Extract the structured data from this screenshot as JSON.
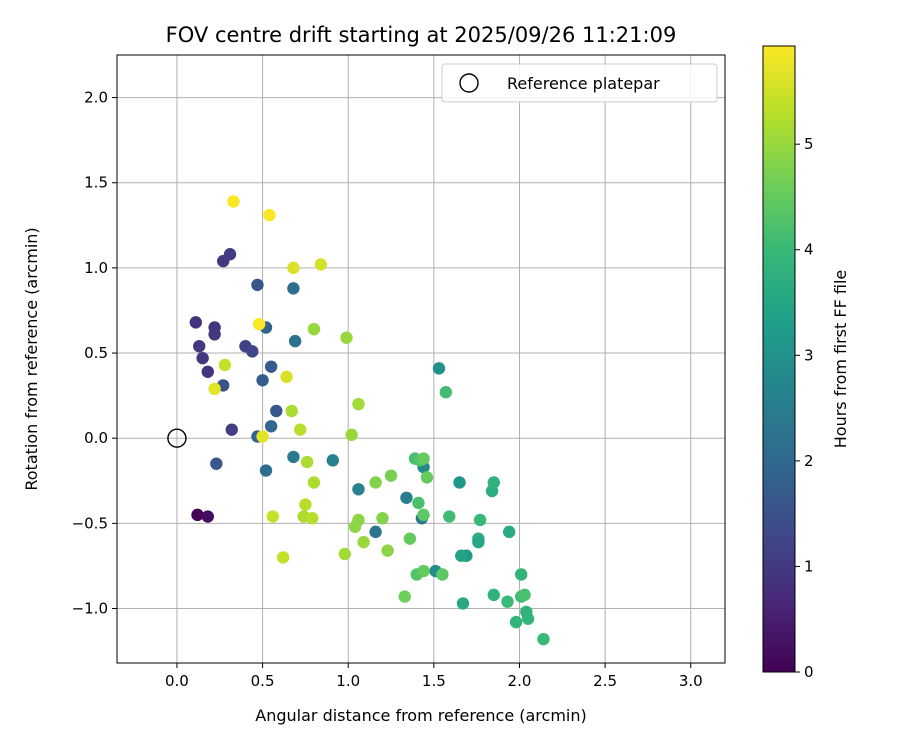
{
  "chart_data": {
    "type": "scatter",
    "title": "FOV centre drift starting at 2025/09/26 11:21:09",
    "xlabel": "Angular distance from reference (arcmin)",
    "ylabel": "Rotation from reference (arcmin)",
    "xlim": [
      -0.35,
      3.2
    ],
    "ylim": [
      -1.32,
      2.25
    ],
    "xticks": [
      0.0,
      0.5,
      1.0,
      1.5,
      2.0,
      2.5,
      3.0
    ],
    "xtick_labels": [
      "0.0",
      "0.5",
      "1.0",
      "1.5",
      "2.0",
      "2.5",
      "3.0"
    ],
    "yticks": [
      -1.0,
      -0.5,
      0.0,
      0.5,
      1.0,
      1.5,
      2.0
    ],
    "ytick_labels": [
      "−1.0",
      "−0.5",
      "0.0",
      "0.5",
      "1.0",
      "1.5",
      "2.0"
    ],
    "grid": true,
    "colormap": "viridis",
    "colorbar": {
      "label": "Hours from first FF file",
      "range": [
        0,
        5.93
      ],
      "ticks": [
        0,
        1,
        2,
        3,
        4,
        5
      ],
      "tick_labels": [
        "0",
        "1",
        "2",
        "3",
        "4",
        "5"
      ]
    },
    "legend": {
      "position": "top-right",
      "entries": [
        {
          "label": "Reference platepar",
          "marker": "open-circle",
          "x": 0.0,
          "y": 0.0
        }
      ]
    },
    "points": [
      {
        "x": 0.12,
        "y": -0.45,
        "t": 0.05
      },
      {
        "x": 0.18,
        "y": -0.46,
        "t": 0.2
      },
      {
        "x": 0.11,
        "y": 0.68,
        "t": 0.85
      },
      {
        "x": 0.13,
        "y": 0.54,
        "t": 1.0
      },
      {
        "x": 0.15,
        "y": 0.47,
        "t": 0.95
      },
      {
        "x": 0.18,
        "y": 0.39,
        "t": 0.9
      },
      {
        "x": 0.22,
        "y": 0.65,
        "t": 0.9
      },
      {
        "x": 0.22,
        "y": 0.61,
        "t": 1.0
      },
      {
        "x": 0.27,
        "y": 1.04,
        "t": 1.0
      },
      {
        "x": 0.31,
        "y": 1.08,
        "t": 1.05
      },
      {
        "x": 0.32,
        "y": 0.05,
        "t": 1.1
      },
      {
        "x": 0.4,
        "y": 0.54,
        "t": 1.15
      },
      {
        "x": 0.44,
        "y": 0.51,
        "t": 1.3
      },
      {
        "x": 0.27,
        "y": 0.31,
        "t": 1.55
      },
      {
        "x": 0.47,
        "y": 0.9,
        "t": 1.6
      },
      {
        "x": 0.23,
        "y": -0.15,
        "t": 1.6
      },
      {
        "x": 0.5,
        "y": 0.34,
        "t": 1.75
      },
      {
        "x": 0.52,
        "y": 0.65,
        "t": 1.85
      },
      {
        "x": 0.55,
        "y": 0.42,
        "t": 1.7
      },
      {
        "x": 0.58,
        "y": 0.16,
        "t": 1.6
      },
      {
        "x": 0.47,
        "y": 0.01,
        "t": 1.9
      },
      {
        "x": 0.55,
        "y": 0.07,
        "t": 1.95
      },
      {
        "x": 0.52,
        "y": -0.19,
        "t": 2.1
      },
      {
        "x": 0.68,
        "y": 0.88,
        "t": 2.15
      },
      {
        "x": 0.69,
        "y": 0.57,
        "t": 2.2
      },
      {
        "x": 0.68,
        "y": -0.11,
        "t": 2.4
      },
      {
        "x": 0.91,
        "y": -0.13,
        "t": 2.6
      },
      {
        "x": 1.06,
        "y": -0.3,
        "t": 2.6
      },
      {
        "x": 1.16,
        "y": -0.55,
        "t": 2.3
      },
      {
        "x": 1.34,
        "y": -0.35,
        "t": 2.5
      },
      {
        "x": 1.43,
        "y": -0.47,
        "t": 2.4
      },
      {
        "x": 1.44,
        "y": -0.17,
        "t": 2.8
      },
      {
        "x": 1.51,
        "y": -0.78,
        "t": 2.9
      },
      {
        "x": 1.53,
        "y": 0.41,
        "t": 3.0
      },
      {
        "x": 1.65,
        "y": -0.26,
        "t": 3.1
      },
      {
        "x": 1.69,
        "y": -0.69,
        "t": 3.2
      },
      {
        "x": 1.66,
        "y": -0.69,
        "t": 3.4
      },
      {
        "x": 1.67,
        "y": -0.97,
        "t": 3.6
      },
      {
        "x": 1.84,
        "y": -0.31,
        "t": 3.7
      },
      {
        "x": 1.85,
        "y": -0.26,
        "t": 3.8
      },
      {
        "x": 1.76,
        "y": -0.59,
        "t": 3.7
      },
      {
        "x": 1.76,
        "y": -0.61,
        "t": 3.5
      },
      {
        "x": 1.77,
        "y": -0.48,
        "t": 4.0
      },
      {
        "x": 1.85,
        "y": -0.92,
        "t": 3.8
      },
      {
        "x": 1.93,
        "y": -0.96,
        "t": 4.0
      },
      {
        "x": 1.94,
        "y": -0.55,
        "t": 3.6
      },
      {
        "x": 1.98,
        "y": -1.08,
        "t": 3.9
      },
      {
        "x": 2.01,
        "y": -0.8,
        "t": 3.9
      },
      {
        "x": 2.01,
        "y": -0.93,
        "t": 4.1
      },
      {
        "x": 2.03,
        "y": -0.92,
        "t": 4.2
      },
      {
        "x": 2.04,
        "y": -1.02,
        "t": 3.8
      },
      {
        "x": 2.05,
        "y": -1.06,
        "t": 3.9
      },
      {
        "x": 2.14,
        "y": -1.18,
        "t": 4.0
      },
      {
        "x": 1.57,
        "y": 0.27,
        "t": 4.1
      },
      {
        "x": 1.59,
        "y": -0.46,
        "t": 4.1
      },
      {
        "x": 1.39,
        "y": -0.12,
        "t": 4.2
      },
      {
        "x": 1.42,
        "y": -0.13,
        "t": 4.3
      },
      {
        "x": 1.41,
        "y": -0.38,
        "t": 4.2
      },
      {
        "x": 1.44,
        "y": -0.12,
        "t": 4.5
      },
      {
        "x": 1.44,
        "y": -0.45,
        "t": 4.4
      },
      {
        "x": 1.46,
        "y": -0.23,
        "t": 4.5
      },
      {
        "x": 1.4,
        "y": -0.8,
        "t": 4.3
      },
      {
        "x": 1.44,
        "y": -0.78,
        "t": 4.5
      },
      {
        "x": 1.55,
        "y": -0.8,
        "t": 4.4
      },
      {
        "x": 1.36,
        "y": -0.59,
        "t": 4.5
      },
      {
        "x": 1.33,
        "y": -0.93,
        "t": 4.6
      },
      {
        "x": 1.25,
        "y": -0.22,
        "t": 4.7
      },
      {
        "x": 1.16,
        "y": -0.26,
        "t": 4.8
      },
      {
        "x": 1.2,
        "y": -0.47,
        "t": 4.8
      },
      {
        "x": 1.23,
        "y": -0.66,
        "t": 4.9
      },
      {
        "x": 1.06,
        "y": -0.48,
        "t": 4.9
      },
      {
        "x": 1.04,
        "y": -0.52,
        "t": 4.9
      },
      {
        "x": 1.09,
        "y": -0.61,
        "t": 5.0
      },
      {
        "x": 0.98,
        "y": -0.68,
        "t": 5.1
      },
      {
        "x": 0.99,
        "y": 0.59,
        "t": 5.0
      },
      {
        "x": 1.02,
        "y": 0.02,
        "t": 5.0
      },
      {
        "x": 1.06,
        "y": 0.2,
        "t": 5.1
      },
      {
        "x": 0.8,
        "y": 0.64,
        "t": 5.0
      },
      {
        "x": 0.67,
        "y": 0.16,
        "t": 5.2
      },
      {
        "x": 0.72,
        "y": 0.05,
        "t": 5.3
      },
      {
        "x": 0.76,
        "y": -0.14,
        "t": 5.2
      },
      {
        "x": 0.8,
        "y": -0.26,
        "t": 5.2
      },
      {
        "x": 0.75,
        "y": -0.39,
        "t": 5.3
      },
      {
        "x": 0.74,
        "y": -0.46,
        "t": 5.2
      },
      {
        "x": 0.79,
        "y": -0.47,
        "t": 5.3
      },
      {
        "x": 0.56,
        "y": -0.46,
        "t": 5.4
      },
      {
        "x": 0.62,
        "y": -0.7,
        "t": 5.4
      },
      {
        "x": 0.64,
        "y": 0.36,
        "t": 5.6
      },
      {
        "x": 0.28,
        "y": 0.43,
        "t": 5.4
      },
      {
        "x": 0.22,
        "y": 0.29,
        "t": 5.7
      },
      {
        "x": 0.5,
        "y": 0.01,
        "t": 5.7
      },
      {
        "x": 0.68,
        "y": 1.0,
        "t": 5.6
      },
      {
        "x": 0.84,
        "y": 1.02,
        "t": 5.55
      },
      {
        "x": 0.48,
        "y": 0.67,
        "t": 5.9
      },
      {
        "x": 0.33,
        "y": 1.39,
        "t": 5.9
      },
      {
        "x": 0.54,
        "y": 1.31,
        "t": 5.9
      }
    ]
  }
}
